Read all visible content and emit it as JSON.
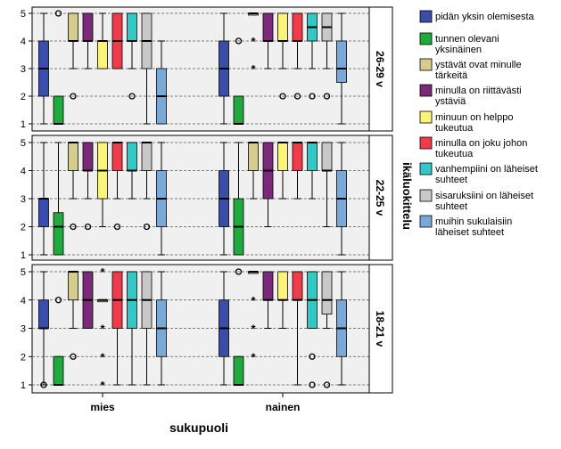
{
  "chart_data": {
    "type": "boxplot",
    "xlabel": "sukupuoli",
    "facet_label": "ikäluokittelu",
    "categories": [
      "mies",
      "nainen"
    ],
    "facets": [
      "26-29 v",
      "22-25 v",
      "18-21 v"
    ],
    "y_ticks": [
      "1",
      "2",
      "3",
      "4",
      "5"
    ],
    "ylim": [
      1,
      5
    ],
    "grid": "dashed horizontal",
    "legend_position": "right",
    "series": [
      {
        "label": "pidän yksin olemisesta",
        "color": "#3a4ea8"
      },
      {
        "label": "tunnen olevani yksinäinen",
        "color": "#1faa3d"
      },
      {
        "label": "ystävät ovat minulle tärkeitä",
        "color": "#d6cc8e"
      },
      {
        "label": "minulla on riittävästi ystäviä",
        "color": "#7b2a7a"
      },
      {
        "label": "minuun on helppo tukeutua",
        "color": "#fbf47a"
      },
      {
        "label": "minulla on joku johon tukeutua",
        "color": "#ef3b4a"
      },
      {
        "label": "vanhempiini on läheiset suhteet",
        "color": "#35c6c6"
      },
      {
        "label": "sisaruksiini on läheiset suhteet",
        "color": "#c8c8c8"
      },
      {
        "label": "muihin sukulaisiin läheiset suhteet",
        "color": "#7aa9d8"
      }
    ],
    "legend_lines": [
      [
        "pidän yksin olemisesta"
      ],
      [
        "tunnen olevani",
        "yksinäinen"
      ],
      [
        "ystävät ovat minulle",
        "tärkeitä"
      ],
      [
        "minulla on riittävästi",
        "ystäviä"
      ],
      [
        "minuun on helppo",
        "tukeutua"
      ],
      [
        "minulla on joku johon",
        "tukeutua"
      ],
      [
        "vanhempiini on läheiset",
        "suhteet"
      ],
      [
        "sisaruksiini on läheiset",
        "suhteet"
      ],
      [
        "muihin sukulaisiin",
        "läheiset suhteet"
      ]
    ],
    "panels": [
      {
        "facet": "26-29 v",
        "groups": [
          {
            "category": "mies",
            "boxes": [
              {
                "min": 1,
                "q1": 2,
                "med": 3,
                "q3": 4,
                "max": 5
              },
              {
                "min": 1,
                "q1": 1,
                "med": 1,
                "q3": 2,
                "max": 2,
                "outliers": [
                  5
                ]
              },
              {
                "min": 3,
                "q1": 4,
                "med": 4,
                "q3": 5,
                "max": 5,
                "outliers": [
                  2
                ]
              },
              {
                "min": 3,
                "q1": 4,
                "med": 4,
                "q3": 5,
                "max": 5
              },
              {
                "min": 3,
                "q1": 3,
                "med": 4,
                "q3": 4,
                "max": 5
              },
              {
                "min": 3,
                "q1": 3,
                "med": 4,
                "q3": 5,
                "max": 5
              },
              {
                "min": 3,
                "q1": 4,
                "med": 4,
                "q3": 5,
                "max": 5,
                "outliers": [
                  2
                ]
              },
              {
                "min": 1,
                "q1": 3,
                "med": 4,
                "q3": 5,
                "max": 5
              },
              {
                "min": 1,
                "q1": 1,
                "med": 2,
                "q3": 3,
                "max": 4
              }
            ]
          },
          {
            "category": "nainen",
            "boxes": [
              {
                "min": 1,
                "q1": 2,
                "med": 3,
                "q3": 4,
                "max": 5
              },
              {
                "min": 1,
                "q1": 1,
                "med": 1,
                "q3": 2,
                "max": 2,
                "outliers": [
                  4
                ]
              },
              {
                "min": 5,
                "q1": 5,
                "med": 5,
                "q3": 5,
                "max": 5,
                "extremes": [
                  4,
                  3
                ]
              },
              {
                "min": 3,
                "q1": 4,
                "med": 4,
                "q3": 5,
                "max": 5
              },
              {
                "min": 3,
                "q1": 4,
                "med": 4,
                "q3": 5,
                "max": 5,
                "outliers": [
                  2
                ]
              },
              {
                "min": 3,
                "q1": 4,
                "med": 4,
                "q3": 5,
                "max": 5,
                "outliers": [
                  2
                ]
              },
              {
                "min": 3,
                "q1": 4,
                "med": 4.5,
                "q3": 5,
                "max": 5,
                "outliers": [
                  2
                ]
              },
              {
                "min": 3,
                "q1": 4,
                "med": 4.5,
                "q3": 5,
                "max": 5,
                "outliers": [
                  2
                ]
              },
              {
                "min": 1,
                "q1": 2.5,
                "med": 3,
                "q3": 4,
                "max": 5
              }
            ]
          }
        ]
      },
      {
        "facet": "22-25 v",
        "groups": [
          {
            "category": "mies",
            "boxes": [
              {
                "min": 1,
                "q1": 2,
                "med": 3,
                "q3": 3,
                "max": 5
              },
              {
                "min": 1,
                "q1": 1,
                "med": 2,
                "q3": 2.5,
                "max": 5
              },
              {
                "min": 3,
                "q1": 4,
                "med": 5,
                "q3": 5,
                "max": 5,
                "outliers": [
                  2
                ]
              },
              {
                "min": 3,
                "q1": 4,
                "med": 4,
                "q3": 5,
                "max": 5,
                "outliers": [
                  2
                ]
              },
              {
                "min": 2,
                "q1": 3,
                "med": 4,
                "q3": 5,
                "max": 5
              },
              {
                "min": 3,
                "q1": 4,
                "med": 5,
                "q3": 5,
                "max": 5,
                "outliers": [
                  2
                ]
              },
              {
                "min": 3,
                "q1": 4,
                "med": 4,
                "q3": 5,
                "max": 5
              },
              {
                "min": 3,
                "q1": 4,
                "med": 5,
                "q3": 5,
                "max": 5,
                "outliers": [
                  2
                ]
              },
              {
                "min": 1,
                "q1": 2,
                "med": 3,
                "q3": 4,
                "max": 5
              }
            ]
          },
          {
            "category": "nainen",
            "boxes": [
              {
                "min": 1,
                "q1": 2,
                "med": 3,
                "q3": 4,
                "max": 5
              },
              {
                "min": 1,
                "q1": 1,
                "med": 2,
                "q3": 3,
                "max": 5
              },
              {
                "min": 3,
                "q1": 4,
                "med": 5,
                "q3": 5,
                "max": 5
              },
              {
                "min": 2,
                "q1": 3,
                "med": 4,
                "q3": 5,
                "max": 5
              },
              {
                "min": 3,
                "q1": 4,
                "med": 5,
                "q3": 5,
                "max": 5
              },
              {
                "min": 3,
                "q1": 4,
                "med": 5,
                "q3": 5,
                "max": 5
              },
              {
                "min": 3,
                "q1": 4,
                "med": 5,
                "q3": 5,
                "max": 5
              },
              {
                "min": 2,
                "q1": 4,
                "med": 4,
                "q3": 5,
                "max": 5
              },
              {
                "min": 1,
                "q1": 2,
                "med": 3,
                "q3": 4,
                "max": 5
              }
            ]
          }
        ]
      },
      {
        "facet": "18-21 v",
        "groups": [
          {
            "category": "mies",
            "boxes": [
              {
                "min": 1,
                "q1": 3,
                "med": 3,
                "q3": 4,
                "max": 5,
                "outliers": [
                  1
                ]
              },
              {
                "min": 1,
                "q1": 1,
                "med": 1,
                "q3": 2,
                "max": 2,
                "outliers": [
                  4
                ]
              },
              {
                "min": 3,
                "q1": 4,
                "med": 5,
                "q3": 5,
                "max": 5,
                "outliers": [
                  2
                ]
              },
              {
                "min": 3,
                "q1": 3,
                "med": 4,
                "q3": 5,
                "max": 5
              },
              {
                "min": 4,
                "q1": 4,
                "med": 4,
                "q3": 4,
                "max": 4,
                "extremes": [
                  5,
                  3,
                  2,
                  1
                ]
              },
              {
                "min": 1,
                "q1": 3,
                "med": 4,
                "q3": 5,
                "max": 5
              },
              {
                "min": 1,
                "q1": 3,
                "med": 4,
                "q3": 5,
                "max": 5
              },
              {
                "min": 1,
                "q1": 3,
                "med": 4,
                "q3": 5,
                "max": 5
              },
              {
                "min": 1,
                "q1": 2,
                "med": 3,
                "q3": 4,
                "max": 5
              }
            ]
          },
          {
            "category": "nainen",
            "boxes": [
              {
                "min": 1,
                "q1": 2,
                "med": 3,
                "q3": 4,
                "max": 5
              },
              {
                "min": 1,
                "q1": 1,
                "med": 1,
                "q3": 2,
                "max": 2,
                "outliers": [
                  5
                ]
              },
              {
                "min": 5,
                "q1": 5,
                "med": 5,
                "q3": 5,
                "max": 5,
                "extremes": [
                  4,
                  3,
                  2
                ]
              },
              {
                "min": 3,
                "q1": 4,
                "med": 4,
                "q3": 5,
                "max": 5
              },
              {
                "min": 3,
                "q1": 4,
                "med": 4,
                "q3": 5,
                "max": 5
              },
              {
                "min": 1,
                "q1": 4,
                "med": 4,
                "q3": 5,
                "max": 5
              },
              {
                "min": 3,
                "q1": 3,
                "med": 4,
                "q3": 5,
                "max": 5,
                "outliers": [
                  2,
                  1
                ]
              },
              {
                "min": 3,
                "q1": 3.5,
                "med": 4,
                "q3": 5,
                "max": 5,
                "outliers": [
                  1
                ]
              },
              {
                "min": 1,
                "q1": 2,
                "med": 3,
                "q3": 4,
                "max": 5
              }
            ]
          }
        ]
      }
    ]
  }
}
